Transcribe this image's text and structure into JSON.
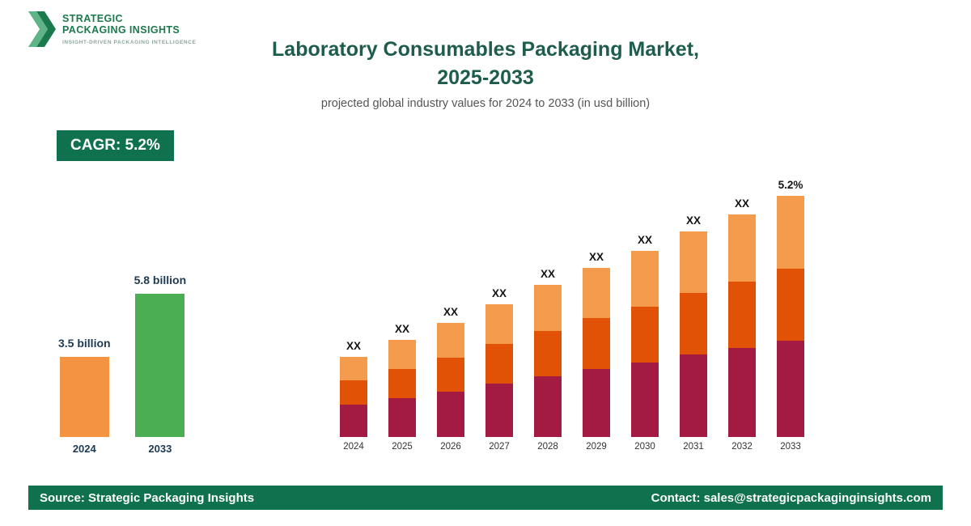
{
  "logo": {
    "line1": "STRATEGIC",
    "line2": "PACKAGING INSIGHTS",
    "tagline": "INSIGHT-DRIVEN PACKAGING INTELLIGENCE"
  },
  "header": {
    "title_line1": "Laboratory Consumables Packaging Market,",
    "title_line2": "2025-2033",
    "subtitle": "projected global industry values for 2024 to 2033 (in usd billion)"
  },
  "cagr_badge": "CAGR: 5.2%",
  "colors": {
    "brand_green": "#10714F",
    "title_green": "#1E5C4E",
    "summary_orange": "#F49341",
    "summary_green": "#4CAE52",
    "segment_bottom_maroon": "#A31B42",
    "segment_middle_orange_red": "#E25206",
    "segment_top_light_orange": "#F59B4D"
  },
  "summary_chart": {
    "unit": "usd billion",
    "bars": [
      {
        "year": "2024",
        "label": "3.5 billion",
        "value": 3.5,
        "height": 99,
        "color": "#F49341"
      },
      {
        "year": "2033",
        "label": "5.8 billion",
        "value": 5.8,
        "height": 177,
        "color": "#4CAE52"
      }
    ]
  },
  "chart_data": {
    "type": "bar",
    "stacked": true,
    "title": "",
    "xlabel": "",
    "ylabel": "",
    "unit": "usd billion",
    "axes_visible": false,
    "grid": false,
    "legend": false,
    "categories": [
      "2024",
      "2025",
      "2026",
      "2027",
      "2028",
      "2029",
      "2030",
      "2031",
      "2032",
      "2033"
    ],
    "bar_labels": [
      "XX",
      "XX",
      "XX",
      "XX",
      "XX",
      "XX",
      "XX",
      "XX",
      "XX",
      "5.2%"
    ],
    "note": "segment values shown as XX placeholders; heights are relative pixel estimates",
    "series": [
      {
        "name": "bottom",
        "color": "#A31B42",
        "heights": [
          40,
          48,
          56,
          66,
          75,
          84,
          92,
          102,
          110,
          119
        ]
      },
      {
        "name": "middle",
        "color": "#E25206",
        "heights": [
          30,
          36,
          42,
          49,
          56,
          63,
          69,
          76,
          82,
          89
        ]
      },
      {
        "name": "top",
        "color": "#F59B4D",
        "heights": [
          29,
          36,
          43,
          49,
          57,
          62,
          69,
          76,
          83,
          90
        ]
      }
    ]
  },
  "footer": {
    "source": "Source: Strategic Packaging Insights",
    "contact": "Contact: sales@strategicpackaginginsights.com"
  }
}
